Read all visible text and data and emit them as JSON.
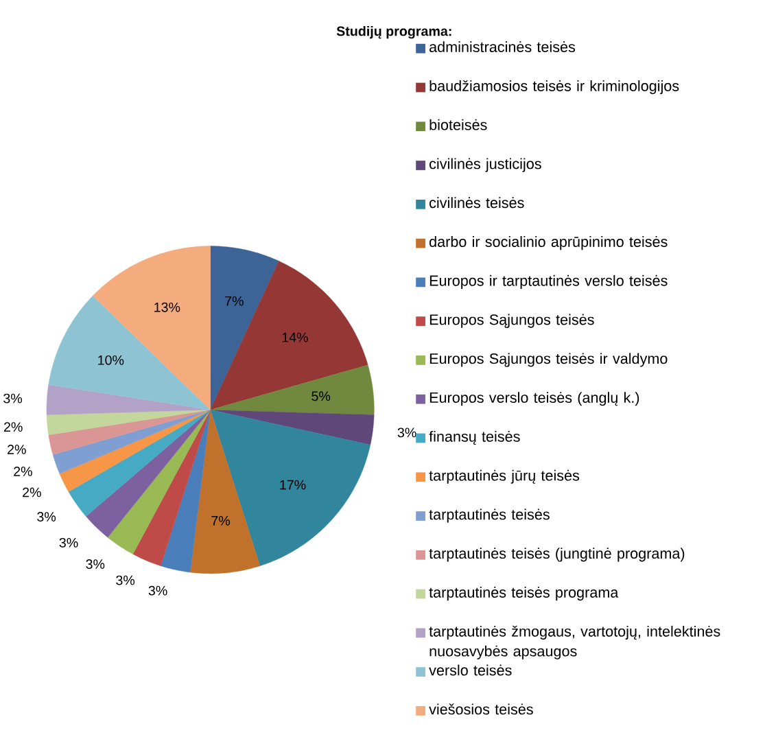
{
  "chart_data": {
    "type": "pie",
    "legend_title": "Studijų programa:",
    "legend": "right",
    "value_labels": [
      "7%",
      "14%",
      "5%",
      "3%",
      "17%",
      "7%",
      "3%",
      "3%",
      "3%",
      "3%",
      "3%",
      "2%",
      "2%",
      "2%",
      "2%",
      "3%",
      "10%",
      "13%"
    ],
    "categories": [
      "administracinės teisės",
      "baudžiamosios teisės ir kriminologijos",
      "bioteisės",
      "civilinės justicijos",
      "civilinės teisės",
      "darbo ir socialinio aprūpinimo teisės",
      "Europos ir tarptautinės verslo teisės",
      "Europos Sąjungos teisės",
      "Europos Sąjungos teisės ir valdymo",
      "Europos verslo teisės (anglų k.)",
      "finansų teisės",
      "tarptautinės jūrų teisės",
      "tarptautinės teisės",
      "tarptautinės teisės (jungtinė programa)",
      "tarptautinės teisės programa",
      "tarptautinės žmogaus, vartotojų, intelektinės nuosavybės apsaugos",
      "verslo teisės",
      "viešosios teisės"
    ],
    "values": [
      7,
      14,
      5,
      3,
      17,
      7,
      3,
      3,
      3,
      3,
      3,
      2,
      2,
      2,
      2,
      3,
      10,
      13
    ],
    "colors": [
      "#3c6496",
      "#953735",
      "#71893f",
      "#5f4879",
      "#31859c",
      "#c0712c",
      "#4a7ebb",
      "#be4b48",
      "#98b954",
      "#7d60a0",
      "#46aac5",
      "#f79646",
      "#7f9ed1",
      "#d99694",
      "#c3d69b",
      "#b3a2c7",
      "#8ec3d4",
      "#f4ac7e"
    ]
  }
}
